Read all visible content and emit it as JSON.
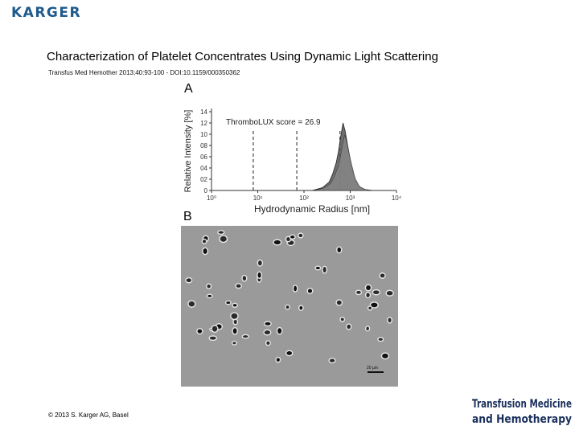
{
  "header": {
    "publisher": "KARGER"
  },
  "slide": {
    "title": "Characterization of Platelet Concentrates Using Dynamic Light Scattering",
    "citation": "Transfus Med Hemother 2013;40:93-100 - DOI:10.1159/000350362",
    "copyright": "© 2013 S. Karger AG, Basel"
  },
  "figure": {
    "panel_a_label": "A",
    "panel_b_label": "B",
    "score_label": "ThromboLUX score = 26.9",
    "scale_bar_label": "20 µm"
  },
  "journal_logo": {
    "line1": "Transfusion Medicine",
    "line2": "and Hemotherapy"
  },
  "colors": {
    "publisher_blue": "#1e5a8c",
    "journal_navy": "#1a2f5c",
    "micro_background": "#9a9a9a"
  },
  "chart_data": {
    "type": "area",
    "title": "",
    "xlabel": "Hydrodynamic Radius [nm]",
    "ylabel": "Relative Intensity [%]",
    "x_scale": "log",
    "xlim": [
      1,
      10000
    ],
    "ylim": [
      0,
      14
    ],
    "x_tick_labels": [
      "10⁰",
      "10¹",
      "10²",
      "10³",
      "10⁴"
    ],
    "x_tick_values": [
      1,
      10,
      100,
      1000,
      10000
    ],
    "y_tick_labels": [
      "0",
      "02",
      "04",
      "06",
      "08",
      "10",
      "12",
      "14"
    ],
    "y_tick_values": [
      0,
      2,
      4,
      6,
      8,
      10,
      12,
      14
    ],
    "annotation": "ThromboLUX score = 26.9",
    "dashed_lines_x": [
      8,
      70,
      600
    ],
    "series": [
      {
        "x": [
          150,
          250,
          350,
          420,
          500,
          560,
          620,
          700,
          780,
          880,
          1000,
          1200,
          1500,
          2000,
          3000
        ],
        "values": [
          0,
          0.5,
          1.5,
          3,
          5,
          7,
          9.5,
          12,
          10.5,
          8,
          5.5,
          2.5,
          0.8,
          0.2,
          0
        ]
      }
    ]
  }
}
